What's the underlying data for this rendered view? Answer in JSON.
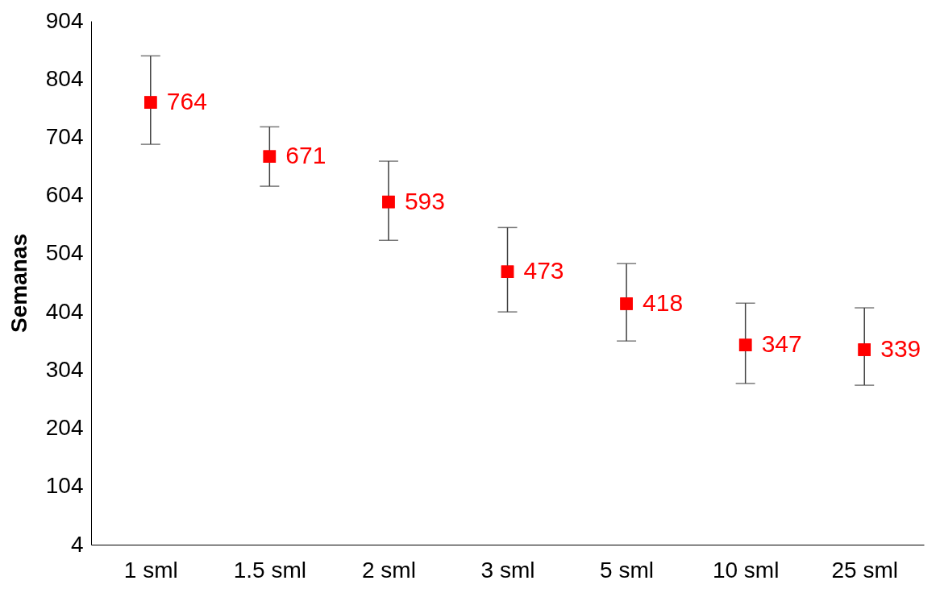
{
  "chart_data": {
    "type": "scatter",
    "ylabel": "Semanas",
    "categories": [
      "1 sml",
      "1.5 sml",
      "2 sml",
      "3 sml",
      "5 sml",
      "10 sml",
      "25 sml"
    ],
    "series": [
      {
        "color": "#ff0000",
        "values": [
          764,
          671,
          593,
          473,
          418,
          347,
          339
        ],
        "errors": [
          [
            692,
            844
          ],
          [
            620,
            722
          ],
          [
            527,
            663
          ],
          [
            404,
            549
          ],
          [
            354,
            487
          ],
          [
            281,
            419
          ],
          [
            278,
            411
          ]
        ]
      }
    ],
    "ylim": [
      4,
      904
    ],
    "yticks": [
      4,
      104,
      204,
      304,
      404,
      504,
      604,
      704,
      804,
      904
    ],
    "marker": "square",
    "data_labels": true,
    "grid": false,
    "legend": false
  }
}
